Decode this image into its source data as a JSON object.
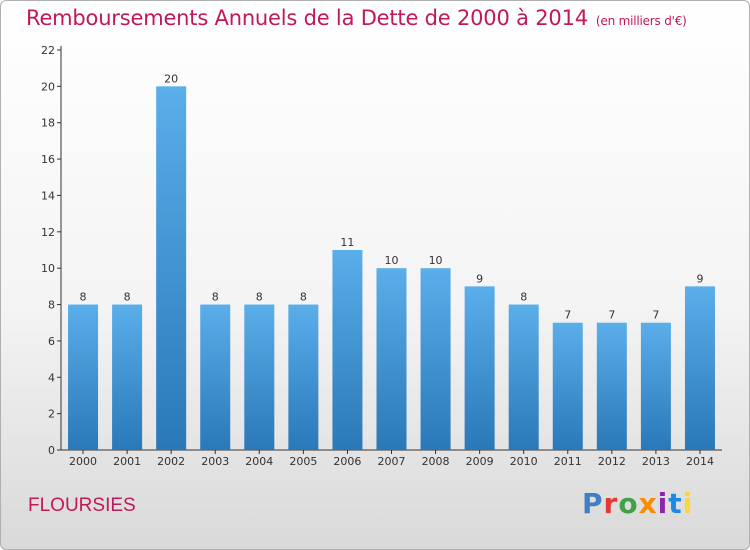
{
  "header": {
    "title": "Remboursements Annuels de la Dette de 2000 à 2014",
    "unit": "(en milliers d'€)"
  },
  "footer": {
    "commune": "FLOURSIES",
    "logo": "Proxiti"
  },
  "colors": {
    "accent": "#c2185b",
    "bar_top": "#5aaeea",
    "bar_bottom": "#2a78b8"
  },
  "chart_data": {
    "type": "bar",
    "title": "Remboursements Annuels de la Dette de 2000 à 2014",
    "xlabel": "",
    "ylabel": "",
    "categories": [
      "2000",
      "2001",
      "2002",
      "2003",
      "2004",
      "2005",
      "2006",
      "2007",
      "2008",
      "2009",
      "2010",
      "2011",
      "2012",
      "2013",
      "2014"
    ],
    "values": [
      8,
      8,
      20,
      8,
      8,
      8,
      11,
      10,
      10,
      9,
      8,
      7,
      7,
      7,
      9
    ],
    "ylim": [
      0,
      22
    ],
    "yticks": [
      0,
      2,
      4,
      6,
      8,
      10,
      12,
      14,
      16,
      18,
      20,
      22
    ],
    "grid": false
  }
}
